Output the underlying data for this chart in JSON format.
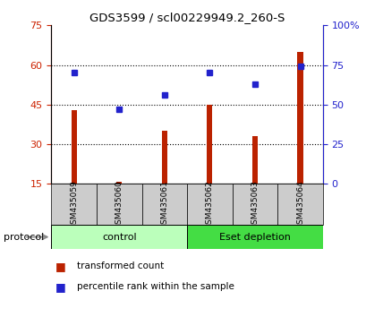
{
  "title": "GDS3599 / scl00229949.2_260-S",
  "samples": [
    "GSM435059",
    "GSM435060",
    "GSM435061",
    "GSM435062",
    "GSM435063",
    "GSM435064"
  ],
  "bar_values": [
    43.0,
    15.7,
    35.0,
    45.0,
    33.0,
    65.0
  ],
  "percentile_values": [
    70.0,
    47.0,
    56.0,
    70.0,
    63.0,
    74.0
  ],
  "bar_color": "#bb2200",
  "dot_color": "#2222cc",
  "ylim_left": [
    15,
    75
  ],
  "ylim_right": [
    0,
    100
  ],
  "yticks_left": [
    15,
    30,
    45,
    60,
    75
  ],
  "yticks_right": [
    0,
    25,
    50,
    75,
    100
  ],
  "ytick_dotted": [
    30,
    45,
    60
  ],
  "groups": [
    {
      "label": "control",
      "indices": [
        0,
        1,
        2
      ],
      "color": "#bbffbb"
    },
    {
      "label": "Eset depletion",
      "indices": [
        3,
        4,
        5
      ],
      "color": "#44dd44"
    }
  ],
  "protocol_label": "protocol",
  "legend_bar_label": "transformed count",
  "legend_dot_label": "percentile rank within the sample",
  "tick_label_color_left": "#cc2200",
  "tick_label_color_right": "#2222cc",
  "sample_box_color": "#cccccc",
  "bar_width": 0.12
}
